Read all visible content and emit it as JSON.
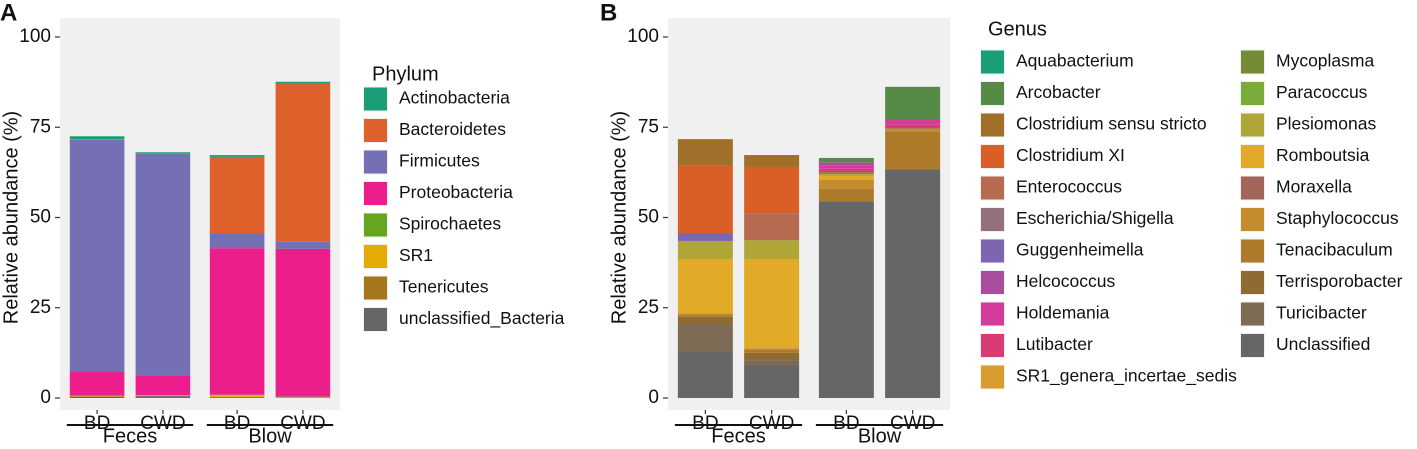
{
  "chart_data": [
    {
      "type": "stacked_bar",
      "panel": "A",
      "ylabel": "Relative abundance (%)",
      "legend_title": "Phylum",
      "categories": [
        "BD",
        "CWD",
        "BD",
        "CWD"
      ],
      "groups": [
        "Feces",
        "Blow"
      ],
      "ylim": [
        0,
        100
      ],
      "yticks": [
        0,
        25,
        50,
        75,
        100
      ],
      "series": [
        {
          "name": "Actinobacteria",
          "color": "#1b9e77",
          "values": [
            0.8,
            0.2,
            0.5,
            0.5
          ]
        },
        {
          "name": "Bacteroidetes",
          "color": "#de602a",
          "values": [
            0.2,
            0.1,
            21.1,
            43.8
          ]
        },
        {
          "name": "Firmicutes",
          "color": "#7570b3",
          "values": [
            64.3,
            61.7,
            4.2,
            2.0
          ]
        },
        {
          "name": "Proteobacteria",
          "color": "#ec1e8c",
          "values": [
            6.5,
            5.3,
            40.6,
            40.9
          ]
        },
        {
          "name": "Spirochaetes",
          "color": "#66a61e",
          "values": [
            0.1,
            0.1,
            0.1,
            0.1
          ]
        },
        {
          "name": "SR1",
          "color": "#e6ab02",
          "values": [
            0.1,
            0.1,
            0.5,
            0.1
          ]
        },
        {
          "name": "Tenericutes",
          "color": "#a6761d",
          "values": [
            0.2,
            0.1,
            0.1,
            0.1
          ]
        },
        {
          "name": "unclassified_Bacteria",
          "color": "#666666",
          "values": [
            0.3,
            0.5,
            0.2,
            0.1
          ]
        }
      ]
    },
    {
      "type": "stacked_bar",
      "panel": "B",
      "ylabel": "Relative abundance (%)",
      "legend_title": "Genus",
      "categories": [
        "BD",
        "CWD",
        "BD",
        "CWD"
      ],
      "groups": [
        "Feces",
        "Blow"
      ],
      "ylim": [
        0,
        100
      ],
      "yticks": [
        0,
        25,
        50,
        75,
        100
      ],
      "series": [
        {
          "name": "Aquabacterium",
          "color": "#1b9e77",
          "values": [
            0,
            0,
            0,
            0
          ]
        },
        {
          "name": "Arcobacter",
          "color": "#568b47",
          "values": [
            0,
            0,
            1.2,
            9.2
          ]
        },
        {
          "name": "Clostridium sensu stricto",
          "color": "#a0702a",
          "values": [
            7.4,
            3.3,
            0,
            0
          ]
        },
        {
          "name": "Clostridium XI",
          "color": "#d95f26",
          "values": [
            18.6,
            12.8,
            0,
            0
          ]
        },
        {
          "name": "Enterococcus",
          "color": "#b66a4f",
          "values": [
            0,
            7.5,
            0,
            0
          ]
        },
        {
          "name": "Escherichia/Shigella",
          "color": "#94707a",
          "values": [
            0,
            0,
            0,
            0
          ]
        },
        {
          "name": "Guggenheimella",
          "color": "#7d66b0",
          "values": [
            2.2,
            0,
            0,
            0
          ]
        },
        {
          "name": "Helcococcus",
          "color": "#a94d9e",
          "values": [
            0,
            0,
            0.8,
            0
          ]
        },
        {
          "name": "Holdemania",
          "color": "#d43b9a",
          "values": [
            0,
            0,
            1,
            1.3
          ]
        },
        {
          "name": "Lutibacter",
          "color": "#d83a72",
          "values": [
            0,
            0,
            1,
            1
          ]
        },
        {
          "name": "SR1_genera_incertae_sedis",
          "color": "#d99c2e",
          "values": [
            0,
            0,
            0,
            0
          ]
        },
        {
          "name": "Mycoplasma",
          "color": "#768b35",
          "values": [
            0,
            0,
            0.5,
            0.2
          ]
        },
        {
          "name": "Paracoccus",
          "color": "#78ab3a",
          "values": [
            0,
            0,
            0,
            0
          ]
        },
        {
          "name": "Plesiomonas",
          "color": "#b0a638",
          "values": [
            5,
            5.2,
            0.5,
            0
          ]
        },
        {
          "name": "Romboutsia",
          "color": "#e2ab27",
          "values": [
            15,
            24.7,
            1,
            0
          ]
        },
        {
          "name": "Moraxella",
          "color": "#a4665a",
          "values": [
            0,
            0,
            0,
            0
          ]
        },
        {
          "name": "Staphylococcus",
          "color": "#c48c2c",
          "values": [
            0.5,
            0.5,
            2.5,
            0.7
          ]
        },
        {
          "name": "Tenacibaculum",
          "color": "#ad7a2a",
          "values": [
            0.5,
            0.8,
            3.5,
            10.5
          ]
        },
        {
          "name": "Terrisporobacter",
          "color": "#8f6b31",
          "values": [
            2,
            2,
            0,
            0
          ]
        },
        {
          "name": "Turicibacter",
          "color": "#7d6b55",
          "values": [
            7.5,
            1.5,
            0,
            0
          ]
        },
        {
          "name": "Unclassified",
          "color": "#666666",
          "values": [
            13,
            9,
            54.5,
            63.3
          ]
        }
      ]
    }
  ]
}
